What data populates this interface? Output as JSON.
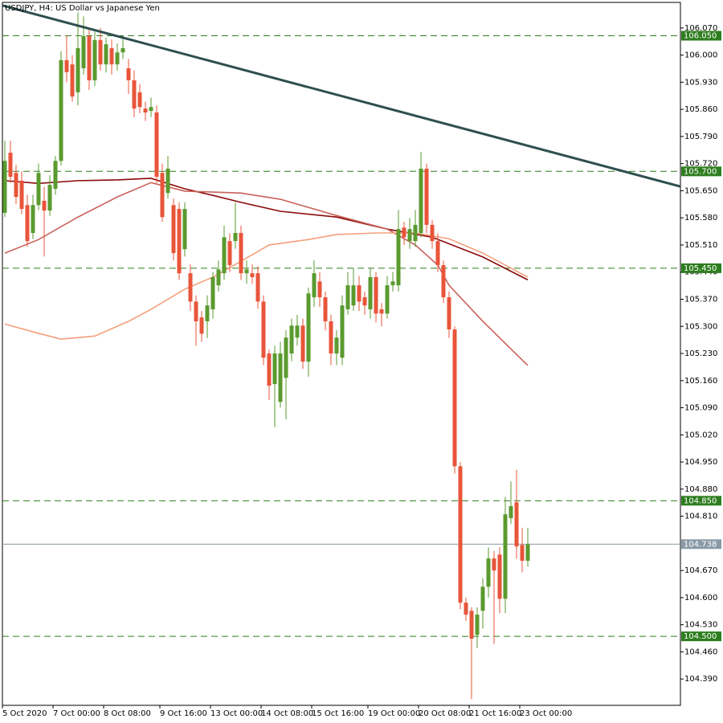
{
  "chart_data": {
    "type": "candlestick",
    "title": "USDJPY, H4:  US Dollar vs Japanese Yen",
    "categories": [
      "5 Oct 2020",
      null,
      null,
      null,
      null,
      null,
      null,
      null,
      null,
      "7 Oct 00:00",
      null,
      null,
      null,
      null,
      null,
      null,
      null,
      null,
      "8 Oct 08:00",
      null,
      null,
      null,
      null,
      null,
      null,
      null,
      null,
      null,
      "9 Oct 16:00",
      null,
      null,
      null,
      null,
      null,
      null,
      null,
      null,
      "13 Oct 00:00",
      null,
      null,
      null,
      null,
      null,
      null,
      null,
      null,
      "14 Oct 08:00",
      null,
      null,
      null,
      null,
      null,
      null,
      null,
      null,
      "15 Oct 16:00",
      null,
      null,
      null,
      null,
      null,
      null,
      null,
      null,
      null,
      "19 Oct 00:00",
      null,
      null,
      null,
      null,
      null,
      null,
      null,
      null,
      "20 Oct 08:00",
      null,
      null,
      null,
      null,
      null,
      null,
      null,
      null,
      "21 Oct 16:00",
      null,
      null,
      null,
      null,
      null,
      null,
      null,
      null,
      "23 Oct 00:00",
      null
    ],
    "open": [
      105.593,
      105.748,
      105.696,
      105.676,
      105.613,
      105.541,
      105.613,
      105.624,
      105.599,
      105.655,
      105.727,
      105.987,
      105.976,
      105.904,
      105.966,
      106.049,
      105.935,
      106.039,
      105.976,
      106.018,
      105.976,
      106.007,
      105.966,
      105.935,
      105.904,
      105.862,
      105.856,
      105.852,
      105.696,
      105.644,
      105.613,
      105.603,
      105.499,
      105.437,
      105.364,
      105.323,
      105.313,
      105.344,
      105.406,
      105.437,
      105.52,
      105.52,
      105.541,
      105.437,
      105.437,
      105.437,
      105.364,
      105.23,
      105.151,
      105.105,
      105.167,
      105.23,
      105.271,
      105.302,
      105.209,
      105.375,
      105.416,
      105.375,
      105.313,
      105.23,
      105.219,
      105.344,
      105.354,
      105.406,
      105.375,
      105.344,
      105.427,
      105.344,
      105.333,
      105.406,
      105.406,
      105.555,
      105.52,
      105.52,
      105.541,
      105.707,
      105.562,
      105.52,
      105.458,
      105.375,
      105.292,
      104.939,
      104.587,
      104.566,
      104.504,
      104.566,
      104.628,
      104.701,
      104.711,
      104.597,
      104.805,
      104.846,
      104.736,
      104.695
    ],
    "high": [
      105.779,
      105.779,
      105.717,
      105.7,
      105.64,
      105.64,
      105.72,
      105.66,
      105.69,
      105.74,
      106.01,
      106.05,
      106.0,
      106.11,
      106.1,
      106.07,
      106.06,
      106.07,
      106.045,
      106.04,
      106.03,
      106.05,
      105.99,
      105.96,
      105.925,
      105.88,
      105.89,
      105.87,
      105.72,
      105.74,
      105.63,
      105.62,
      105.62,
      105.46,
      105.38,
      105.34,
      105.38,
      105.44,
      105.47,
      105.56,
      105.54,
      105.62,
      105.56,
      105.47,
      105.46,
      105.455,
      105.38,
      105.24,
      105.25,
      105.26,
      105.29,
      105.32,
      105.33,
      105.32,
      105.4,
      105.47,
      105.44,
      105.39,
      105.33,
      105.29,
      105.38,
      105.44,
      105.45,
      105.43,
      105.39,
      105.45,
      105.44,
      105.36,
      105.43,
      105.44,
      105.6,
      105.57,
      105.58,
      105.6,
      105.75,
      105.72,
      105.575,
      105.54,
      105.47,
      105.39,
      105.3,
      104.95,
      104.6,
      104.575,
      104.575,
      104.65,
      104.73,
      104.72,
      104.73,
      104.86,
      104.9,
      104.93,
      104.78,
      104.78
    ],
    "low": [
      105.582,
      105.67,
      105.615,
      105.59,
      105.505,
      105.525,
      105.6,
      105.48,
      105.585,
      105.64,
      105.715,
      105.93,
      105.88,
      105.87,
      105.95,
      105.91,
      105.92,
      105.96,
      105.955,
      105.95,
      105.96,
      105.99,
      105.9,
      105.84,
      105.85,
      105.83,
      105.84,
      105.67,
      105.57,
      105.63,
      105.47,
      105.42,
      105.48,
      105.34,
      105.25,
      105.26,
      105.27,
      105.32,
      105.39,
      105.42,
      105.44,
      105.5,
      105.42,
      105.41,
      105.41,
      105.345,
      105.2,
      105.11,
      105.04,
      105.09,
      105.06,
      105.21,
      105.25,
      105.19,
      105.17,
      105.35,
      105.35,
      105.29,
      105.2,
      105.2,
      105.2,
      105.33,
      105.34,
      105.34,
      105.33,
      105.32,
      105.31,
      105.3,
      105.32,
      105.39,
      105.39,
      105.51,
      105.5,
      105.505,
      105.53,
      105.54,
      105.5,
      105.44,
      105.36,
      105.27,
      104.92,
      104.57,
      104.54,
      104.338,
      104.47,
      104.52,
      104.6,
      104.48,
      104.56,
      104.56,
      104.79,
      104.7,
      104.665,
      104.68
    ],
    "close": [
      105.727,
      105.686,
      105.634,
      105.603,
      105.52,
      105.613,
      105.696,
      105.599,
      105.665,
      105.727,
      105.987,
      105.956,
      105.893,
      106.018,
      106.049,
      105.935,
      106.039,
      105.976,
      106.028,
      105.976,
      106.007,
      106.018,
      105.935,
      105.862,
      105.866,
      105.852,
      105.866,
      105.686,
      105.582,
      105.707,
      105.489,
      105.437,
      105.603,
      105.364,
      105.313,
      105.281,
      105.354,
      105.427,
      105.447,
      105.53,
      105.458,
      105.541,
      105.437,
      105.447,
      105.427,
      105.364,
      105.219,
      105.147,
      105.23,
      105.23,
      105.271,
      105.302,
      105.302,
      105.209,
      105.385,
      105.437,
      105.375,
      105.313,
      105.23,
      105.271,
      105.354,
      105.406,
      105.406,
      105.364,
      105.354,
      105.427,
      105.333,
      105.333,
      105.406,
      105.416,
      105.551,
      105.53,
      105.551,
      105.562,
      105.707,
      105.562,
      105.52,
      105.458,
      105.375,
      105.292,
      104.939,
      104.587,
      104.556,
      104.494,
      104.556,
      104.628,
      104.701,
      104.67,
      104.597,
      104.815,
      104.836,
      104.732,
      104.695,
      104.738
    ],
    "up_color": "#5a9a2e",
    "down_color": "#e8553a",
    "moving_averages": [
      {
        "color": "#8b0a0a",
        "x": [
          0,
          6,
          13,
          20,
          26,
          32,
          37,
          42,
          49,
          59,
          68,
          76,
          85,
          93
        ],
        "values": [
          105.676,
          105.669,
          105.676,
          105.678,
          105.682,
          105.655,
          105.638,
          105.62,
          105.597,
          105.582,
          105.551,
          105.53,
          105.479,
          105.42
        ]
      },
      {
        "color": "#c9625a",
        "x": [
          0,
          6,
          13,
          20,
          26,
          32,
          42,
          49,
          59,
          68,
          73,
          77,
          79,
          85,
          93
        ],
        "values": [
          105.489,
          105.524,
          105.582,
          105.634,
          105.671,
          105.649,
          105.644,
          105.628,
          105.586,
          105.551,
          105.51,
          105.458,
          105.406,
          105.313,
          105.199
        ]
      },
      {
        "color": "#f4a07c",
        "x": [
          0,
          6,
          10,
          16,
          22,
          26,
          32,
          37,
          42,
          47,
          54,
          59,
          66,
          73,
          79,
          85,
          93
        ],
        "values": [
          105.306,
          105.282,
          105.267,
          105.275,
          105.313,
          105.344,
          105.396,
          105.427,
          105.468,
          105.51,
          105.524,
          105.537,
          105.541,
          105.541,
          105.526,
          105.489,
          105.427
        ]
      }
    ],
    "trendline": {
      "color": "#2f4f4f",
      "x": [
        -0.43,
        120.14
      ],
      "values": [
        106.128,
        105.661
      ]
    },
    "levels": {
      "color": "#2e7d1f",
      "values": [
        106.05,
        105.7,
        105.45,
        104.85,
        104.5
      ],
      "value_labels": [
        "106.050",
        "105.700",
        "105.450",
        "104.850",
        "104.500"
      ]
    },
    "last_price": {
      "color": "#8a9aa6",
      "value": 104.738
    },
    "ylim": [
      104.322,
      106.136
    ],
    "yticks": [
      {
        "value": 106.07,
        "label": "106.070"
      },
      {
        "value": 106.0,
        "label": "106.000"
      },
      {
        "value": 105.93,
        "label": "105.930"
      },
      {
        "value": 105.86,
        "label": "105.860"
      },
      {
        "value": 105.79,
        "label": "105.790"
      },
      {
        "value": 105.72,
        "label": "105.720"
      },
      {
        "value": 105.65,
        "label": "105.650"
      },
      {
        "value": 105.58,
        "label": "105.580"
      },
      {
        "value": 105.51,
        "label": "105.510"
      },
      {
        "value": 105.44,
        "label": "105.440"
      },
      {
        "value": 105.37,
        "label": "105.370"
      },
      {
        "value": 105.3,
        "label": "105.300"
      },
      {
        "value": 105.23,
        "label": "105.230"
      },
      {
        "value": 105.16,
        "label": "105.160"
      },
      {
        "value": 105.09,
        "label": "105.090"
      },
      {
        "value": 105.02,
        "label": "105.020"
      },
      {
        "value": 104.95,
        "label": "104.950"
      },
      {
        "value": 104.88,
        "label": "104.880"
      },
      {
        "value": 104.81,
        "label": "104.810"
      },
      {
        "value": 104.67,
        "label": "104.670"
      },
      {
        "value": 104.6,
        "label": "104.600"
      },
      {
        "value": 104.53,
        "label": "104.530"
      },
      {
        "value": 104.46,
        "label": "104.460"
      },
      {
        "value": 104.39,
        "label": "104.390"
      }
    ]
  }
}
